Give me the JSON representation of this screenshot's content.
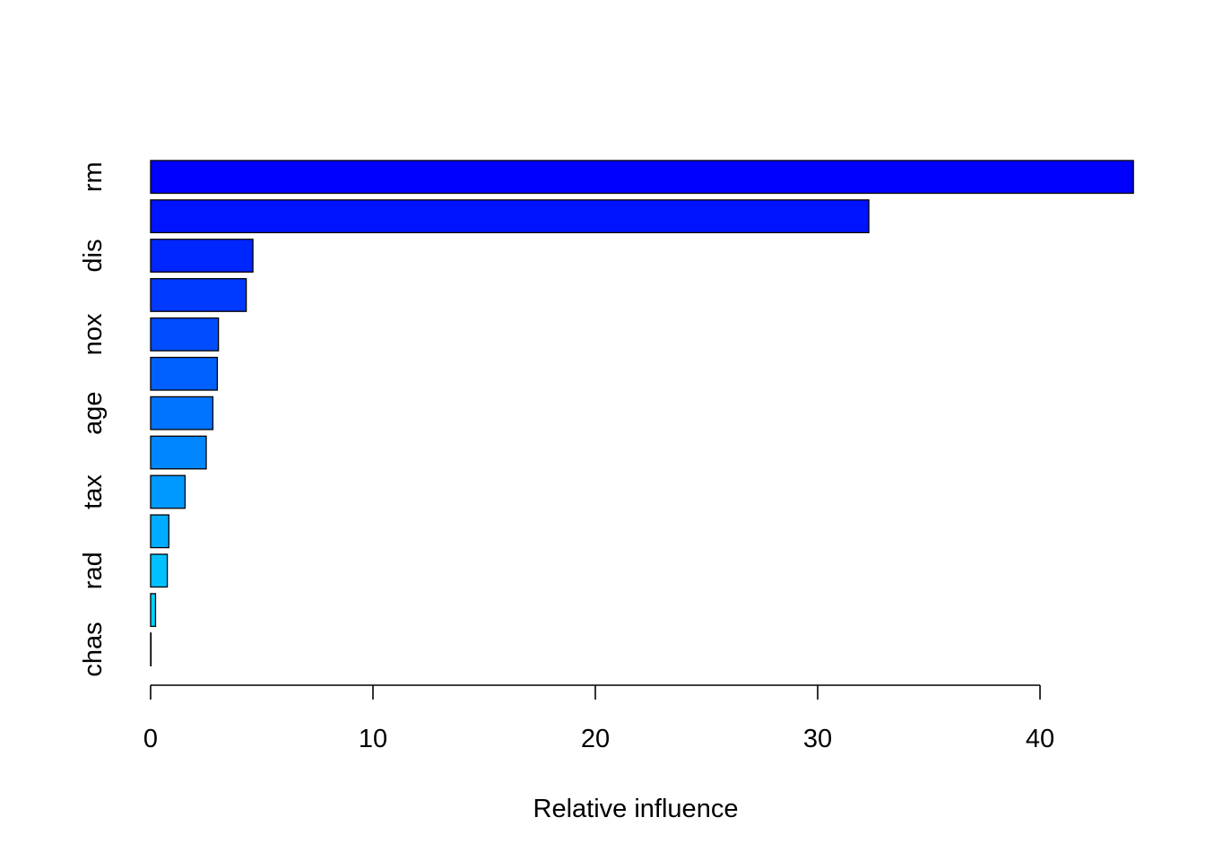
{
  "chart_data": {
    "type": "bar",
    "orientation": "horizontal",
    "title": "",
    "xlabel": "Relative influence",
    "ylabel": "",
    "xlim": [
      0,
      44.2
    ],
    "x_ticks": [
      0,
      10,
      20,
      30,
      40
    ],
    "grid": false,
    "legend": "none",
    "series": [
      {
        "categories": [
          "rm",
          "",
          "dis",
          "",
          "nox",
          "",
          "age",
          "",
          "tax",
          "",
          "rad",
          "",
          "chas"
        ],
        "values": [
          44.2,
          32.3,
          4.6,
          4.3,
          3.05,
          3.0,
          2.8,
          2.5,
          1.55,
          0.82,
          0.75,
          0.22,
          0.02
        ],
        "colors": [
          "#0000FF",
          "#0013FF",
          "#0026FF",
          "#0039FF",
          "#004CFF",
          "#0060FF",
          "#0073FF",
          "#0086FF",
          "#0099FF",
          "#00ACFF",
          "#00C0FF",
          "#00D3FF",
          "#00E5FF"
        ]
      }
    ]
  }
}
